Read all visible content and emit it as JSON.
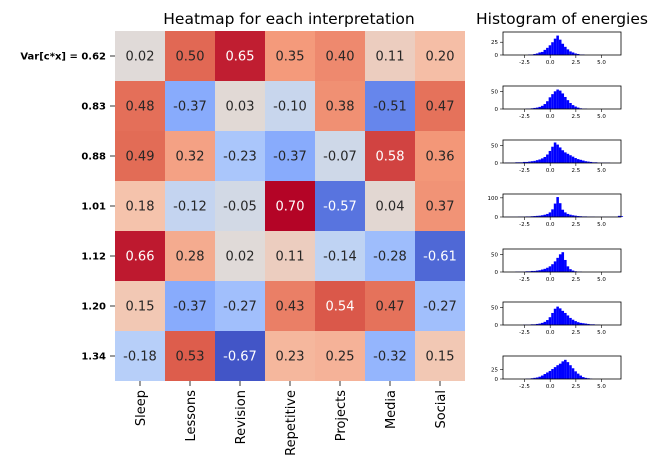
{
  "chart_data": [
    {
      "type": "heatmap",
      "title": "Heatmap for each interpretation",
      "row_labels": [
        "Var[c*x] = 0.62",
        "0.83",
        "0.88",
        "1.01",
        "1.12",
        "1.20",
        "1.34"
      ],
      "col_labels": [
        "Sleep",
        "Lessons",
        "Revision",
        "Repetitive",
        "Projects",
        "Media",
        "Social"
      ],
      "values": [
        [
          0.02,
          0.5,
          0.65,
          0.35,
          0.4,
          0.11,
          0.2
        ],
        [
          0.48,
          -0.37,
          0.03,
          -0.1,
          0.38,
          -0.51,
          0.47
        ],
        [
          0.49,
          0.32,
          -0.23,
          -0.37,
          -0.07,
          0.58,
          0.36
        ],
        [
          0.18,
          -0.12,
          -0.05,
          0.7,
          -0.57,
          0.04,
          0.37
        ],
        [
          0.66,
          0.28,
          0.02,
          0.11,
          -0.14,
          -0.28,
          -0.61
        ],
        [
          0.15,
          -0.37,
          -0.27,
          0.43,
          0.54,
          0.47,
          -0.27
        ],
        [
          -0.18,
          0.53,
          -0.67,
          0.23,
          0.25,
          -0.32,
          0.15
        ]
      ],
      "colormap": "coolwarm",
      "vmin": -0.7,
      "vmax": 0.7,
      "colorbar": false
    },
    {
      "type": "bar",
      "title": "Histogram of energies",
      "xlim": [
        -4.6,
        6.9
      ],
      "xticks": [
        "-2.5",
        "0.0",
        "2.5",
        "5.0"
      ],
      "color": "#0000ff",
      "bin_start": -4.4,
      "bin_width": 0.25,
      "panels": [
        {
          "ylim": [
            0,
            45
          ],
          "yticks": [
            "0",
            "25"
          ],
          "counts": [
            0,
            0,
            0,
            0,
            0,
            0,
            0,
            0,
            0,
            1,
            1,
            2,
            3,
            5,
            6,
            10,
            14,
            19,
            25,
            32,
            38,
            30,
            22,
            16,
            11,
            7,
            5,
            3,
            2,
            1,
            1,
            0,
            0,
            0,
            0,
            0,
            0,
            0,
            0,
            0,
            0,
            0,
            0,
            0,
            0,
            0
          ]
        },
        {
          "ylim": [
            0,
            65
          ],
          "yticks": [
            "0",
            "50"
          ],
          "counts": [
            0,
            0,
            0,
            0,
            0,
            0,
            0,
            0,
            1,
            1,
            2,
            3,
            4,
            6,
            9,
            14,
            22,
            33,
            42,
            50,
            55,
            52,
            44,
            34,
            25,
            17,
            11,
            7,
            4,
            2,
            1,
            1,
            0,
            0,
            0,
            0,
            0,
            0,
            0,
            0,
            0,
            0,
            0,
            0,
            0,
            0
          ]
        },
        {
          "ylim": [
            0,
            65
          ],
          "yticks": [
            "0",
            "50"
          ],
          "counts": [
            1,
            1,
            1,
            1,
            2,
            2,
            2,
            3,
            3,
            4,
            5,
            6,
            8,
            10,
            13,
            17,
            24,
            34,
            46,
            58,
            52,
            44,
            36,
            30,
            26,
            22,
            18,
            14,
            11,
            9,
            7,
            5,
            4,
            3,
            2,
            2,
            1,
            1,
            1,
            1,
            1,
            0,
            0,
            0,
            0,
            0
          ]
        },
        {
          "ylim": [
            0,
            120
          ],
          "yticks": [
            "0",
            "100"
          ],
          "counts": [
            1,
            1,
            1,
            1,
            1,
            2,
            2,
            2,
            3,
            3,
            4,
            5,
            6,
            7,
            9,
            12,
            16,
            24,
            40,
            70,
            104,
            72,
            38,
            24,
            16,
            12,
            9,
            7,
            5,
            4,
            3,
            3,
            2,
            2,
            2,
            1,
            1,
            1,
            1,
            1,
            1,
            1,
            1,
            1,
            6,
            4
          ]
        },
        {
          "ylim": [
            0,
            65
          ],
          "yticks": [
            "0",
            "50"
          ],
          "counts": [
            0,
            0,
            0,
            0,
            1,
            1,
            1,
            1,
            2,
            2,
            3,
            3,
            4,
            5,
            7,
            9,
            12,
            16,
            22,
            30,
            40,
            50,
            56,
            34,
            16,
            8,
            4,
            2,
            1,
            1,
            0,
            0,
            0,
            0,
            0,
            0,
            0,
            0,
            0,
            0,
            0,
            0,
            0,
            0,
            0,
            0
          ]
        },
        {
          "ylim": [
            0,
            65
          ],
          "yticks": [
            "0",
            "50"
          ],
          "counts": [
            0,
            0,
            0,
            0,
            0,
            0,
            0,
            1,
            1,
            1,
            2,
            2,
            3,
            4,
            6,
            9,
            14,
            22,
            34,
            46,
            52,
            47,
            40,
            34,
            27,
            20,
            15,
            11,
            8,
            6,
            5,
            4,
            3,
            2,
            2,
            1,
            1,
            0,
            0,
            0,
            0,
            0,
            0,
            0,
            0,
            0
          ]
        },
        {
          "ylim": [
            0,
            60
          ],
          "yticks": [
            "0",
            "25"
          ],
          "counts": [
            0,
            0,
            0,
            0,
            0,
            0,
            0,
            0,
            1,
            1,
            2,
            3,
            4,
            6,
            9,
            13,
            17,
            21,
            26,
            31,
            36,
            40,
            46,
            50,
            44,
            36,
            28,
            20,
            14,
            9,
            5,
            3,
            2,
            1,
            0,
            0,
            0,
            0,
            0,
            0,
            0,
            0,
            0,
            0,
            0,
            0
          ]
        }
      ]
    }
  ]
}
